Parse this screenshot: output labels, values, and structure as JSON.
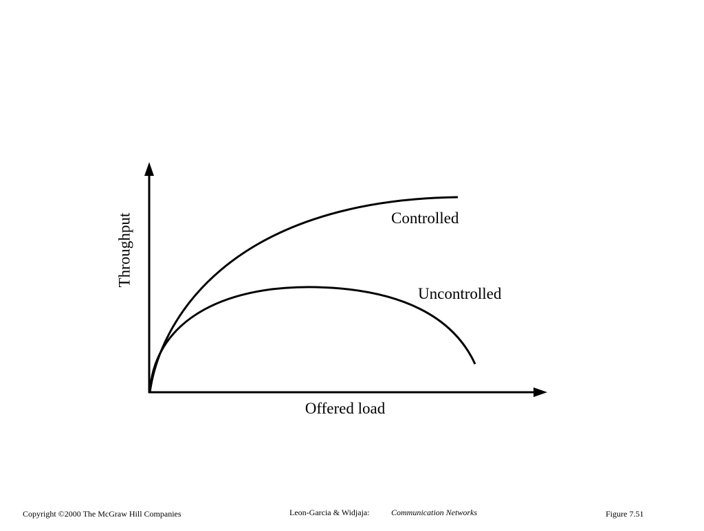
{
  "diagram": {
    "y_axis_label": "Throughput",
    "x_axis_label": "Offered load",
    "curves": [
      {
        "label": "Controlled"
      },
      {
        "label": "Uncontrolled"
      }
    ]
  },
  "footer": {
    "copyright": "Copyright ©2000 The McGraw Hill Companies",
    "credit": "Leon-Garcia & Widjaja:",
    "book": "Communication Networks",
    "figure": "Figure 7.51"
  }
}
